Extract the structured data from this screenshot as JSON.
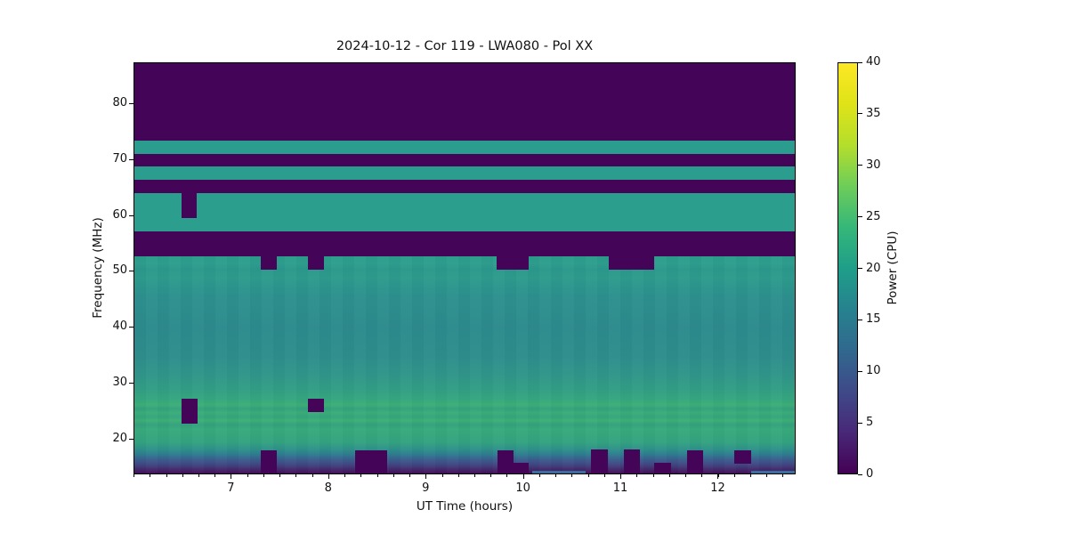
{
  "chart_data": {
    "type": "heatmap",
    "title": "2024-10-12 - Cor 119 - LWA080 - Pol XX",
    "xlabel": "UT Time (hours)",
    "ylabel": "Frequency (MHz)",
    "x_range": [
      6.0,
      12.8
    ],
    "y_range": [
      13.6,
      87.3
    ],
    "x_ticks": [
      7,
      8,
      9,
      10,
      11,
      12
    ],
    "x_minor_tick_step": 0.166667,
    "y_ticks": [
      20,
      30,
      40,
      50,
      60,
      70,
      80
    ],
    "grid": false,
    "colorbar": {
      "label": "Power (CPU)",
      "min": 0,
      "max": 40,
      "ticks": [
        0,
        5,
        10,
        15,
        20,
        25,
        30,
        35,
        40
      ],
      "colormap": "viridis",
      "colormap_stops": [
        {
          "v": 0.0,
          "color": "#440154"
        },
        {
          "v": 0.1,
          "color": "#482878"
        },
        {
          "v": 0.2,
          "color": "#3e4a89"
        },
        {
          "v": 0.3,
          "color": "#31688e"
        },
        {
          "v": 0.4,
          "color": "#26828e"
        },
        {
          "v": 0.5,
          "color": "#1f9e89"
        },
        {
          "v": 0.6,
          "color": "#35b779"
        },
        {
          "v": 0.7,
          "color": "#6dcd59"
        },
        {
          "v": 0.8,
          "color": "#b4de2c"
        },
        {
          "v": 0.9,
          "color": "#dfe318"
        },
        {
          "v": 1.0,
          "color": "#fde725"
        }
      ]
    },
    "dropout_color": "#440457",
    "bands": [
      {
        "f_top": 87.3,
        "f_bottom": 73.4,
        "power": 0,
        "color": "#440457"
      },
      {
        "f_top": 73.4,
        "f_bottom": 71.0,
        "power": 21.5,
        "color": "#2a9d8e"
      },
      {
        "f_top": 71.0,
        "f_bottom": 68.9,
        "power": 0,
        "color": "#440457"
      },
      {
        "f_top": 68.9,
        "f_bottom": 66.5,
        "power": 21.5,
        "color": "#2a9d8e"
      },
      {
        "f_top": 66.5,
        "f_bottom": 64.0,
        "power": 0,
        "color": "#440457"
      },
      {
        "f_top": 64.0,
        "f_bottom": 57.2,
        "power": 21.5,
        "color": "#2b9e8d"
      },
      {
        "f_top": 57.2,
        "f_bottom": 52.8,
        "power": 0,
        "color": "#440457"
      }
    ],
    "field": {
      "f_top": 52.8,
      "f_bottom": 13.6,
      "stops": [
        {
          "f": 52.8,
          "power": 21.5,
          "color": "#2c9c8b"
        },
        {
          "f": 51.5,
          "power": 22.0,
          "color": "#2f9f8e"
        },
        {
          "f": 50.5,
          "power": 21.0,
          "color": "#2b988c"
        },
        {
          "f": 49.0,
          "power": 21.5,
          "color": "#2e9c8d"
        },
        {
          "f": 47.0,
          "power": 20.5,
          "color": "#2c958d"
        },
        {
          "f": 45.5,
          "power": 20.0,
          "color": "#2e908e"
        },
        {
          "f": 40.0,
          "power": 19.5,
          "color": "#2d8b8d"
        },
        {
          "f": 35.0,
          "power": 20.0,
          "color": "#2e8e8c"
        },
        {
          "f": 31.0,
          "power": 21.0,
          "color": "#319789"
        },
        {
          "f": 28.5,
          "power": 22.5,
          "color": "#33a183"
        },
        {
          "f": 27.0,
          "power": 23.5,
          "color": "#36a87e"
        },
        {
          "f": 26.2,
          "power": 24.5,
          "color": "#3dae77"
        },
        {
          "f": 25.5,
          "power": 23.0,
          "color": "#34a27f"
        },
        {
          "f": 24.8,
          "power": 24.5,
          "color": "#3bad79"
        },
        {
          "f": 24.1,
          "power": 23.5,
          "color": "#35a67e"
        },
        {
          "f": 23.4,
          "power": 25.0,
          "color": "#3cb076"
        },
        {
          "f": 22.7,
          "power": 23.0,
          "color": "#35a17f"
        },
        {
          "f": 21.8,
          "power": 24.0,
          "color": "#38ab7b"
        },
        {
          "f": 20.5,
          "power": 23.0,
          "color": "#36a67e"
        },
        {
          "f": 19.5,
          "power": 22.0,
          "color": "#34a380"
        },
        {
          "f": 18.3,
          "power": 20.0,
          "color": "#2f928a"
        },
        {
          "f": 17.4,
          "power": 17.0,
          "color": "#2e7f8f"
        },
        {
          "f": 16.6,
          "power": 13.0,
          "color": "#38648f"
        },
        {
          "f": 15.8,
          "power": 10.0,
          "color": "#3f4f88"
        },
        {
          "f": 15.0,
          "power": 7.0,
          "color": "#433776"
        },
        {
          "f": 14.3,
          "power": 4.0,
          "color": "#441d62"
        },
        {
          "f": 13.6,
          "power": 1.0,
          "color": "#440154"
        }
      ]
    },
    "dropouts": [
      {
        "t0": 6.48,
        "t1": 6.64,
        "f_top": 64.0,
        "f_bottom": 59.6,
        "power": 0
      },
      {
        "t0": 7.3,
        "t1": 7.46,
        "f_top": 52.8,
        "f_bottom": 50.3,
        "power": 0
      },
      {
        "t0": 7.78,
        "t1": 7.95,
        "f_top": 52.8,
        "f_bottom": 50.3,
        "power": 0
      },
      {
        "t0": 9.72,
        "t1": 10.05,
        "f_top": 52.8,
        "f_bottom": 50.3,
        "power": 0
      },
      {
        "t0": 10.87,
        "t1": 11.34,
        "f_top": 52.8,
        "f_bottom": 50.3,
        "power": 0
      },
      {
        "t0": 6.48,
        "t1": 6.65,
        "f_top": 27.3,
        "f_bottom": 22.9,
        "power": 0
      },
      {
        "t0": 7.78,
        "t1": 7.95,
        "f_top": 27.3,
        "f_bottom": 24.9,
        "power": 0
      },
      {
        "t0": 7.3,
        "t1": 7.46,
        "f_top": 18.1,
        "f_bottom": 13.6,
        "power": 0
      },
      {
        "t0": 8.27,
        "t1": 8.6,
        "f_top": 18.1,
        "f_bottom": 13.6,
        "power": 0
      },
      {
        "t0": 9.73,
        "t1": 9.89,
        "f_top": 18.1,
        "f_bottom": 13.6,
        "power": 0
      },
      {
        "t0": 9.89,
        "t1": 10.05,
        "f_top": 15.9,
        "f_bottom": 13.6,
        "power": 0
      },
      {
        "t0": 10.69,
        "t1": 10.86,
        "f_top": 18.2,
        "f_bottom": 13.6,
        "power": 0
      },
      {
        "t0": 11.03,
        "t1": 11.19,
        "f_top": 18.2,
        "f_bottom": 13.6,
        "power": 0
      },
      {
        "t0": 11.34,
        "t1": 11.51,
        "f_top": 15.9,
        "f_bottom": 13.6,
        "power": 0
      },
      {
        "t0": 11.68,
        "t1": 11.84,
        "f_top": 18.1,
        "f_bottom": 13.6,
        "power": 0
      },
      {
        "t0": 12.16,
        "t1": 12.33,
        "f_top": 18.0,
        "f_bottom": 15.7,
        "power": 0
      }
    ],
    "streaks": [
      {
        "t0": 10.09,
        "t1": 10.63,
        "f_top": 14.4,
        "f_bottom": 13.85,
        "power": 13,
        "color": "#3a6f9e"
      },
      {
        "t0": 12.33,
        "t1": 12.8,
        "f_top": 14.4,
        "f_bottom": 13.85,
        "power": 13,
        "color": "#3a6f9e"
      }
    ]
  }
}
